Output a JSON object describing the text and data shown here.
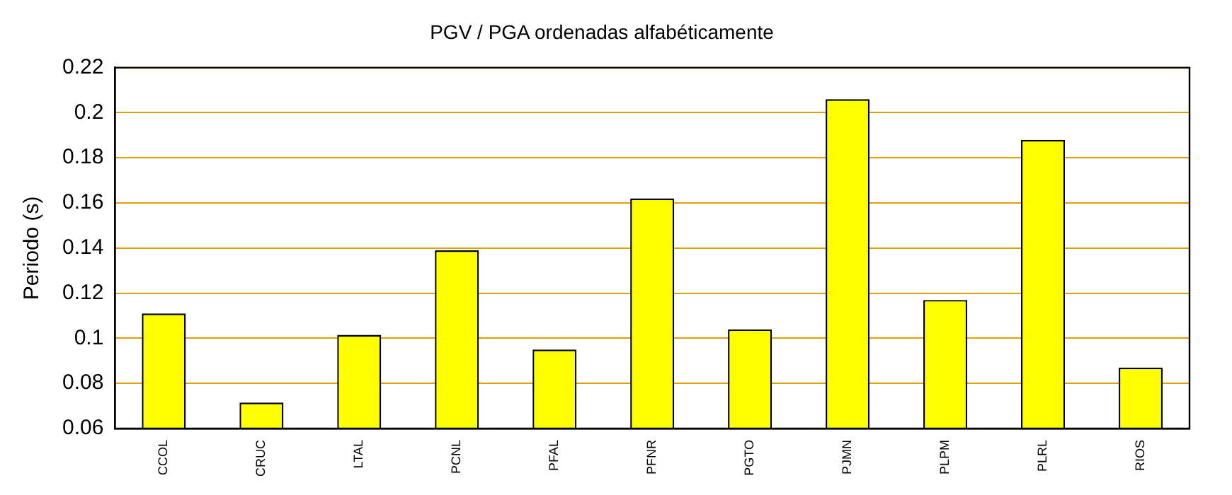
{
  "chart_data": {
    "type": "bar",
    "title": "PGV / PGA ordenadas alfabéticamente",
    "ylabel": "Periodo (s)",
    "categories": [
      "CCOL",
      "CRUC",
      "LTAL",
      "PCNL",
      "PFAL",
      "PFNR",
      "PGTO",
      "PJMN",
      "PLPM",
      "PLRL",
      "RIOS"
    ],
    "values": [
      0.111,
      0.0715,
      0.1015,
      0.139,
      0.095,
      0.162,
      0.104,
      0.206,
      0.117,
      0.188,
      0.087
    ],
    "color": "#ffff00",
    "ylim": [
      0.06,
      0.22
    ],
    "yticks": [
      0.06,
      0.08,
      0.1,
      0.12,
      0.14,
      0.16,
      0.18,
      0.2,
      0.22
    ],
    "grid": "y",
    "legend": false
  }
}
